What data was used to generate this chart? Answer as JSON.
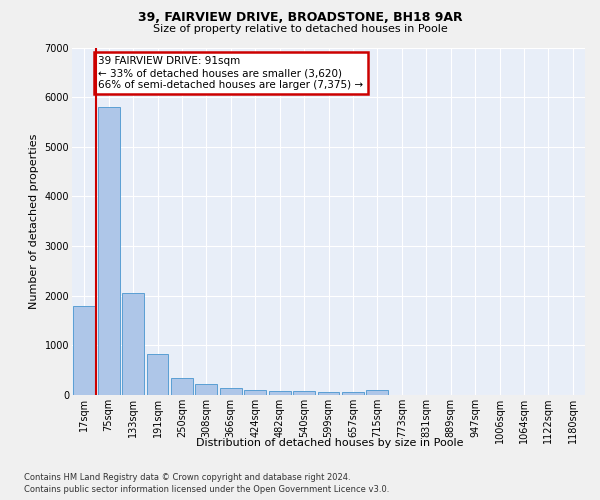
{
  "title1": "39, FAIRVIEW DRIVE, BROADSTONE, BH18 9AR",
  "title2": "Size of property relative to detached houses in Poole",
  "xlabel": "Distribution of detached houses by size in Poole",
  "ylabel": "Number of detached properties",
  "categories": [
    "17sqm",
    "75sqm",
    "133sqm",
    "191sqm",
    "250sqm",
    "308sqm",
    "366sqm",
    "424sqm",
    "482sqm",
    "540sqm",
    "599sqm",
    "657sqm",
    "715sqm",
    "773sqm",
    "831sqm",
    "889sqm",
    "947sqm",
    "1006sqm",
    "1064sqm",
    "1122sqm",
    "1180sqm"
  ],
  "values": [
    1800,
    5800,
    2060,
    830,
    340,
    220,
    140,
    110,
    85,
    75,
    65,
    55,
    110,
    0,
    0,
    0,
    0,
    0,
    0,
    0,
    0
  ],
  "bar_color": "#aec6e8",
  "bar_edge_color": "#5a9fd4",
  "annotation_text": "39 FAIRVIEW DRIVE: 91sqm\n← 33% of detached houses are smaller (3,620)\n66% of semi-detached houses are larger (7,375) →",
  "annotation_box_color": "#ffffff",
  "annotation_box_edge_color": "#cc0000",
  "vline_color": "#cc0000",
  "vline_x": 0.5,
  "ylim": [
    0,
    7000
  ],
  "yticks": [
    0,
    1000,
    2000,
    3000,
    4000,
    5000,
    6000,
    7000
  ],
  "background_color": "#e8eef8",
  "grid_color": "#ffffff",
  "footer1": "Contains HM Land Registry data © Crown copyright and database right 2024.",
  "footer2": "Contains public sector information licensed under the Open Government Licence v3.0.",
  "fig_bg": "#f0f0f0",
  "title1_fontsize": 9,
  "title2_fontsize": 8,
  "ylabel_fontsize": 8,
  "xlabel_fontsize": 8,
  "tick_fontsize": 7,
  "annotation_fontsize": 7.5,
  "footer_fontsize": 6
}
